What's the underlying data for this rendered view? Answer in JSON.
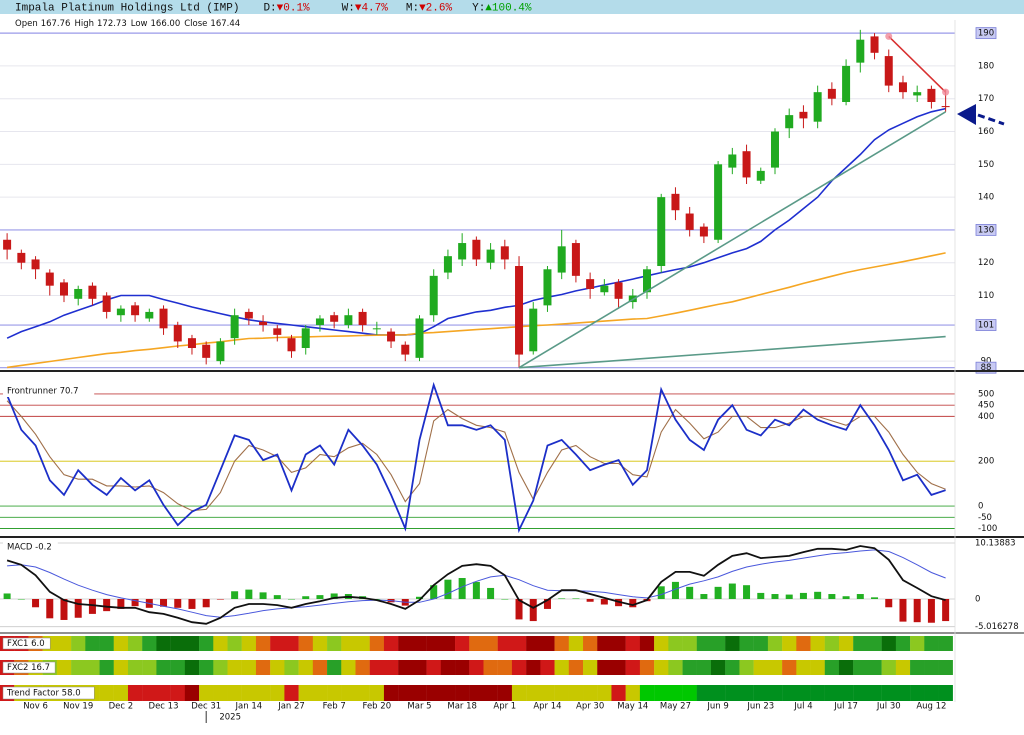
{
  "header": {
    "title": "Impala Platinum Holdings Ltd (IMP)",
    "background": "#b4dcea",
    "changes": [
      {
        "label": "D:",
        "value": "▼0.1%",
        "color": "#d00000"
      },
      {
        "label": "W:",
        "value": "▼4.7%",
        "color": "#d00000"
      },
      {
        "label": "M:",
        "value": "▼2.6%",
        "color": "#d00000"
      },
      {
        "label": "Y:",
        "value": "▲100.4%",
        "color": "#00a000"
      }
    ]
  },
  "ohlc": [
    {
      "label": "Open",
      "value": "167.76"
    },
    {
      "label": "High",
      "value": "172.73"
    },
    {
      "label": "Low",
      "value": "166.00"
    },
    {
      "label": "Close",
      "value": "167.44"
    }
  ],
  "chart_data": [
    {
      "type": "candlestick",
      "categories": [
        null,
        null,
        "Nov 6",
        null,
        null,
        "Nov 19",
        null,
        null,
        "Dec 2",
        null,
        null,
        "Dec 13",
        null,
        null,
        "Dec 31",
        null,
        null,
        "Jan 14",
        null,
        null,
        "Jan 27",
        null,
        null,
        "Feb 7",
        null,
        null,
        "Feb 20",
        null,
        null,
        "Mar 5",
        null,
        null,
        "Mar 18",
        null,
        null,
        "Apr 1",
        null,
        null,
        "Apr 14",
        null,
        null,
        "Apr 30",
        null,
        null,
        "May 14",
        null,
        null,
        "May 27",
        null,
        null,
        "Jun 9",
        null,
        null,
        "Jun 23",
        null,
        null,
        "Jul 4",
        null,
        null,
        "Jul 17",
        null,
        null,
        "Jul 30",
        null,
        null,
        "Aug 12",
        null
      ],
      "year_marker": {
        "label": "2025",
        "index": 14
      },
      "open": [
        127,
        123,
        121,
        117,
        114,
        109,
        113,
        110,
        104,
        107,
        103,
        106,
        101,
        97,
        95,
        90,
        97,
        105,
        102,
        100,
        97,
        94,
        101,
        104,
        101,
        105,
        100,
        99,
        95,
        91,
        104,
        117,
        121,
        127,
        120,
        125,
        119,
        93,
        107,
        117,
        126,
        115,
        111,
        114,
        108,
        111,
        119,
        141,
        135,
        131,
        127,
        149,
        154,
        145,
        149,
        161,
        166,
        163,
        173,
        169,
        181,
        189,
        183,
        175,
        171,
        173,
        167.76
      ],
      "high": [
        129,
        124,
        122,
        118,
        115,
        113,
        114,
        111,
        107,
        108,
        106,
        107,
        102,
        98,
        96,
        97,
        106,
        106,
        104,
        101,
        98,
        101,
        104,
        105,
        106,
        106,
        102,
        100,
        96,
        104,
        118,
        124,
        129,
        128,
        126,
        127,
        122,
        108,
        119,
        130,
        127,
        117,
        115,
        115,
        112,
        119,
        141,
        143,
        137,
        132,
        151,
        155,
        156,
        149,
        161,
        167,
        168,
        174,
        175,
        182,
        191,
        190,
        185,
        177,
        174,
        174,
        172.73
      ],
      "low": [
        121,
        118,
        115,
        110,
        108,
        107,
        107,
        103,
        102,
        102,
        102,
        98,
        94,
        92,
        89,
        89,
        95,
        101,
        99,
        96,
        91,
        92,
        99,
        100,
        100,
        99,
        98,
        94,
        90,
        90,
        102,
        115,
        119,
        119,
        118,
        118,
        88,
        92,
        105,
        115,
        114,
        109,
        110,
        106,
        106,
        109,
        117,
        133,
        128,
        126,
        126,
        147,
        144,
        144,
        147,
        158,
        161,
        161,
        168,
        168,
        178,
        182,
        172,
        170,
        169,
        167,
        166
      ],
      "close": [
        124,
        120,
        118,
        113,
        110,
        112,
        109,
        105,
        106,
        104,
        105,
        100,
        96,
        94,
        91,
        96,
        104,
        103,
        101,
        98,
        93,
        100,
        103,
        102,
        104,
        101,
        100,
        96,
        92,
        103,
        116,
        122,
        126,
        121,
        124,
        121,
        92,
        106,
        118,
        125,
        116,
        112,
        113,
        109,
        110,
        118,
        140,
        136,
        130,
        128,
        150,
        153,
        146,
        148,
        160,
        165,
        164,
        172,
        170,
        180,
        188,
        184,
        174,
        172,
        172,
        169,
        167.44
      ],
      "up_color": "#20aa20",
      "down_color": "#c81818",
      "overlays": [
        {
          "color": "#1f2fd0",
          "values": [
            97,
            99,
            100.5,
            102,
            104,
            105.5,
            107,
            108.7,
            110,
            110,
            110,
            108.8,
            107.7,
            106.5,
            105.5,
            104.5,
            103.5,
            102.6,
            102,
            101.5,
            101,
            100.5,
            100,
            99.5,
            99,
            98.5,
            98,
            98,
            98,
            98.3,
            100.5,
            103,
            104,
            105,
            105.5,
            106.4,
            107,
            108.5,
            109.5,
            110.3,
            111.4,
            112.3,
            113.2,
            114.1,
            115,
            116,
            117,
            117.9,
            118.7,
            120,
            121.5,
            123,
            124.3,
            126.5,
            130,
            133,
            136.5,
            140,
            145,
            149,
            153,
            157.5,
            160.5,
            162.5,
            164.5,
            166,
            167
          ]
        },
        {
          "color": "#f5a623",
          "values": [
            88.1,
            88.7,
            89.3,
            89.9,
            90.5,
            91.1,
            91.7,
            92.3,
            92.7,
            93.2,
            93.6,
            94.1,
            94.6,
            95,
            95.5,
            95.9,
            96.4,
            96.9,
            97,
            97.2,
            97.3,
            97.4,
            97.5,
            97.6,
            97.7,
            97.8,
            97.9,
            98,
            98,
            98.5,
            98.7,
            99,
            99.3,
            99.6,
            99.9,
            100.2,
            100.5,
            100.8,
            101,
            101.3,
            101.6,
            101.9,
            102.2,
            102.5,
            102.8,
            103,
            103.8,
            104.6,
            105.5,
            106.4,
            107.3,
            108.1,
            109.2,
            110.3,
            111.4,
            112.5,
            113.7,
            114.8,
            115.9,
            117,
            117.9,
            118.7,
            119.5,
            120.3,
            121.2,
            122.1,
            123
          ]
        }
      ],
      "trendlines": [
        {
          "color": "#5a9a88",
          "from": [
            36,
            88
          ],
          "to": [
            66,
            166
          ]
        },
        {
          "color": "#5a9a88",
          "from": [
            36,
            88
          ],
          "to": [
            66,
            97.5
          ]
        },
        {
          "color": "#d83030",
          "from": [
            62,
            189
          ],
          "to": [
            66,
            172
          ],
          "endpoints": "#f08a9a"
        }
      ],
      "levels": [
        88,
        101,
        130,
        190
      ],
      "level_color": "#9a9ae8",
      "ylim": [
        87.6,
        194
      ],
      "yticks": [
        90,
        110,
        120,
        140,
        150,
        160,
        170,
        180
      ],
      "grid": true
    },
    {
      "type": "line",
      "title": "Frontrunner 70.7",
      "series": [
        {
          "color": "#1c2fc8",
          "values": [
            495,
            340,
            270,
            115,
            50,
            160,
            95,
            50,
            125,
            70,
            115,
            5,
            -85,
            -25,
            5,
            160,
            315,
            295,
            205,
            230,
            70,
            230,
            270,
            185,
            340,
            270,
            185,
            50,
            -100,
            295,
            540,
            360,
            360,
            340,
            360,
            295,
            -107,
            25,
            270,
            295,
            230,
            160,
            185,
            205,
            95,
            160,
            520,
            385,
            295,
            250,
            385,
            450,
            340,
            315,
            385,
            360,
            430,
            385,
            360,
            340,
            450,
            360,
            250,
            115,
            140,
            50,
            70.7
          ]
        },
        {
          "color": "#a0704a",
          "values": [
            470,
            400,
            320,
            220,
            140,
            120,
            120,
            90,
            90,
            85,
            90,
            60,
            10,
            -20,
            -15,
            60,
            200,
            270,
            250,
            220,
            150,
            170,
            230,
            220,
            260,
            280,
            230,
            140,
            20,
            100,
            380,
            430,
            390,
            360,
            350,
            330,
            150,
            30,
            150,
            250,
            270,
            220,
            190,
            190,
            140,
            130,
            330,
            430,
            370,
            300,
            330,
            400,
            400,
            350,
            350,
            370,
            400,
            400,
            380,
            360,
            400,
            400,
            330,
            230,
            150,
            100,
            75
          ]
        }
      ],
      "ylim": [
        -129,
        580
      ],
      "yticks": [
        500,
        450,
        400,
        200,
        0,
        -50,
        -100
      ],
      "tick_colors": [
        "#c04040",
        "#c04040",
        "#c04040",
        "#d4c000",
        "#30a030",
        "#30a030",
        "#30a030"
      ]
    },
    {
      "type": "macd",
      "title": "MACD -0.2",
      "series": [
        {
          "color": "#111111",
          "values": [
            7,
            6.2,
            4.3,
            1.3,
            -0.2,
            -0.9,
            -1.1,
            -1.4,
            -1.6,
            -1.6,
            -2.4,
            -2.7,
            -3.4,
            -4.2,
            -4.5,
            -3.4,
            -1.6,
            -0.9,
            -0.9,
            -1.1,
            -1.6,
            -0.9,
            -0.4,
            0.2,
            0.4,
            0.2,
            -0.2,
            -0.9,
            -1.8,
            -0.2,
            2.5,
            4.5,
            6,
            6.3,
            6,
            4.3,
            -0.2,
            -1.6,
            -0.2,
            1.6,
            1.6,
            0.9,
            0.2,
            -0.5,
            -1.1,
            -0.2,
            3.1,
            4.9,
            4.9,
            4.2,
            6.2,
            7.8,
            8.3,
            7.4,
            7.6,
            7.8,
            8.5,
            9.1,
            9.1,
            8.9,
            9.6,
            9.2,
            7.1,
            3.4,
            2,
            0.5,
            -0.2
          ]
        },
        {
          "color": "#4a58dc",
          "values": [
            6,
            6.2,
            5.8,
            4.8,
            3.6,
            2.5,
            1.6,
            0.8,
            0.2,
            -0.3,
            -0.8,
            -1.3,
            -1.8,
            -2.4,
            -3,
            -3.3,
            -3,
            -2.6,
            -2.1,
            -1.8,
            -1.6,
            -1.4,
            -1.1,
            -0.8,
            -0.5,
            -0.3,
            -0.2,
            -0.3,
            -0.6,
            -0.6,
            0,
            1,
            2.2,
            3.2,
            4,
            4.3,
            3.5,
            2.4,
            1.6,
            1.5,
            1.5,
            1.4,
            1.2,
            0.8,
            0.4,
            0.2,
            0.8,
            1.8,
            2.7,
            3.3,
            4,
            5,
            5.8,
            6.3,
            6.7,
            7,
            7.4,
            7.8,
            8.2,
            8.4,
            8.7,
            8.9,
            8.6,
            7.5,
            6.2,
            4.8,
            3.8
          ]
        }
      ],
      "histogram": {
        "up_color": "#22b022",
        "down_color": "#c01010",
        "values": [
          1,
          0,
          -1.5,
          -3.5,
          -3.8,
          -3.4,
          -2.7,
          -2.2,
          -1.8,
          -1.3,
          -1.6,
          -1.4,
          -1.6,
          -1.8,
          -1.5,
          -0.1,
          1.4,
          1.7,
          1.2,
          0.7,
          0,
          0.5,
          0.7,
          1,
          0.9,
          0.5,
          0,
          -0.6,
          -1.2,
          0.4,
          2.5,
          3.5,
          3.8,
          3.1,
          2,
          0,
          -3.7,
          -4,
          -1.8,
          0.1,
          0.1,
          -0.5,
          -1,
          -1.3,
          -1.5,
          -0.4,
          2.3,
          3.1,
          2.2,
          0.9,
          2.2,
          2.8,
          2.5,
          1.1,
          0.9,
          0.8,
          1.1,
          1.3,
          0.9,
          0.5,
          0.9,
          0.3,
          -1.5,
          -4.1,
          -4.2,
          -4.3,
          -4
        ]
      },
      "ylim": [
        -5.98,
        11.05
      ],
      "yticks": [
        10.13883,
        0,
        -5.016278
      ]
    },
    {
      "type": "heatstrip",
      "palette": {
        "R": "#9a0000",
        "r": "#d01818",
        "o": "#e06a10",
        "y": "#c8c800",
        "l": "#8cc820",
        "g": "#28a028",
        "G": "#0a6e0a",
        "T": "#00c800",
        "D": "#00901e"
      },
      "strips": [
        {
          "title": "FXC1 6.0",
          "codes": "rroyylggylgGGGgylyorroylyyorRRRRroorrRRoyoRRrRyllggGgglyoylyggGglgg"
        },
        {
          "title": "FXC2 16.7",
          "codes": "roylyllgyllggGglyyoylyogyorrRRrRRroorRryoyRRroylggGglyyoyygGgglyggg"
        },
        {
          "title": "Trend Factor 58.0",
          "codes": "ryyyyyyyyrrrrRyyyyyyryyyyyyRRRRRRRRRyyyyyyyryTTTTDDDDDDDDDDDDDDDDDD"
        }
      ]
    }
  ]
}
